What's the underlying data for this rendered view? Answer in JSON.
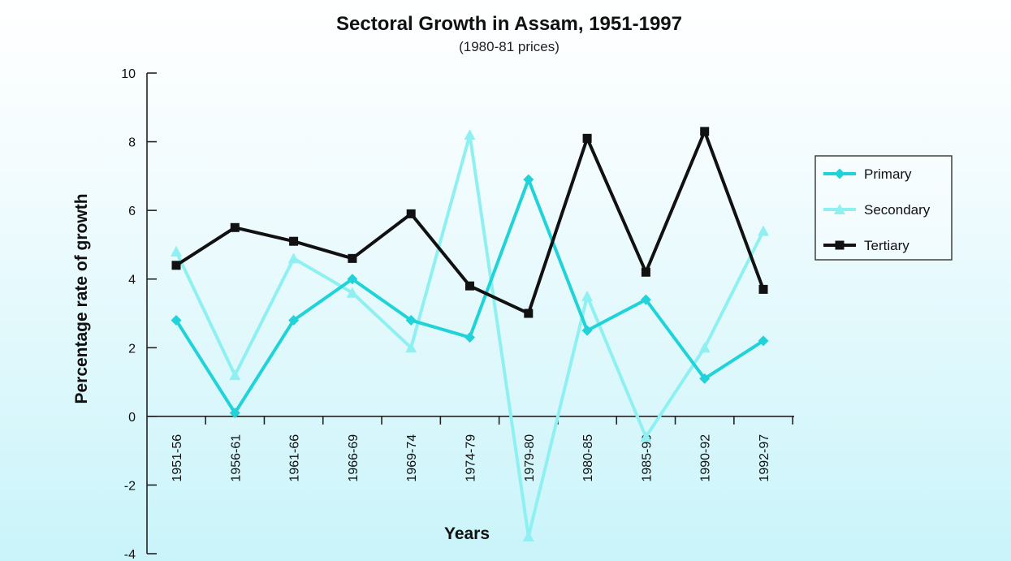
{
  "chart_data": {
    "type": "line",
    "title": "Sectoral Growth in Assam, 1951-1997",
    "subtitle": "(1980-81 prices)",
    "xlabel": "Years",
    "ylabel": "Percentage rate of growth",
    "ylim": [
      -4,
      10
    ],
    "yticks": [
      -4,
      -2,
      0,
      2,
      4,
      6,
      8,
      10
    ],
    "grid": false,
    "legend_position": "right",
    "categories": [
      "1951-56",
      "1956-61",
      "1961-66",
      "1966-69",
      "1969-74",
      "1974-79",
      "1979-80",
      "1980-85",
      "1985-90",
      "1990-92",
      "1992-97"
    ],
    "series": [
      {
        "name": "Primary",
        "color": "#1fd3d8",
        "marker": "diamond",
        "values": [
          2.8,
          0.1,
          2.8,
          4.0,
          2.8,
          2.3,
          6.9,
          2.5,
          3.4,
          1.1,
          2.2
        ]
      },
      {
        "name": "Secondary",
        "color": "#8ff0f2",
        "marker": "triangle",
        "values": [
          4.8,
          1.2,
          4.6,
          3.6,
          2.0,
          8.2,
          -3.5,
          3.5,
          -0.6,
          2.0,
          5.4
        ]
      },
      {
        "name": "Tertiary",
        "color": "#111111",
        "marker": "square",
        "values": [
          4.4,
          5.5,
          5.1,
          4.6,
          5.9,
          3.8,
          3.0,
          8.1,
          4.2,
          8.3,
          3.7
        ]
      }
    ]
  }
}
